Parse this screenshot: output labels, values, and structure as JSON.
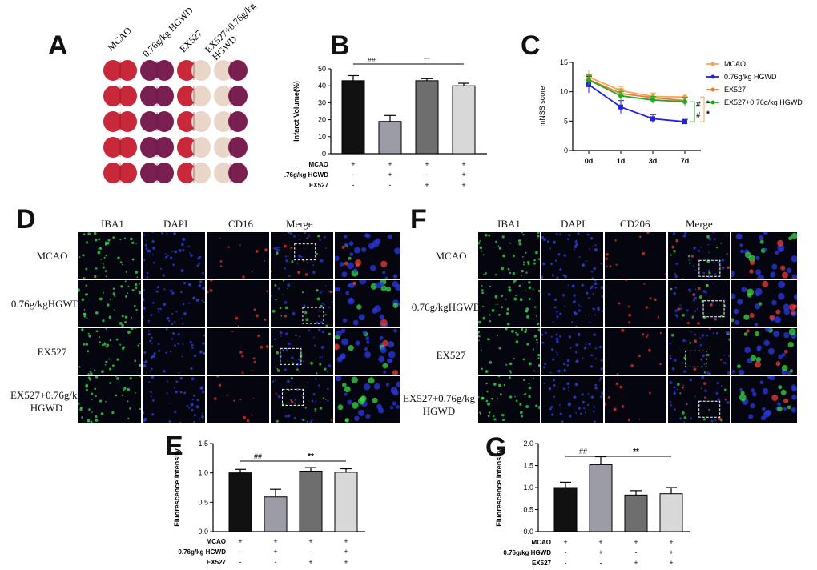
{
  "panels": {
    "A": "A",
    "B": "B",
    "C": "C",
    "D": "D",
    "E": "E",
    "F": "F",
    "G": "G"
  },
  "panel_a": {
    "columns": [
      "MCAO",
      "0.76g/kg HGWD",
      "EX527",
      "EX527+0.76g/kg\nHGWD"
    ],
    "tissue_colors": {
      "red": "#c8283a",
      "purple": "#7a1f52",
      "pale": "#ead6c8"
    }
  },
  "treatment_table": {
    "row_labels": [
      "MCAO",
      "0.76g/kg HGWD",
      "EX527"
    ],
    "rows": [
      [
        "+",
        "+",
        "+",
        "+"
      ],
      [
        "-",
        "+",
        "-",
        "+"
      ],
      [
        "-",
        "-",
        "+",
        "+"
      ]
    ]
  },
  "chart_data": [
    {
      "id": "B",
      "type": "bar",
      "title": "",
      "ylabel": "Infarct Volume(%)",
      "ylim": [
        0,
        50
      ],
      "yticks": [
        0,
        10,
        20,
        30,
        40,
        50
      ],
      "categories": [
        "MCAO",
        "0.76g/kg HGWD",
        "EX527",
        "EX527+0.76g/kg HGWD"
      ],
      "values": [
        43,
        19,
        43,
        40
      ],
      "errors": [
        3,
        3.5,
        1.2,
        1.5
      ],
      "colors": [
        "#111111",
        "#9c9ca6",
        "#6e6e6e",
        "#d8d8d8"
      ],
      "annotations": [
        "##",
        "**"
      ]
    },
    {
      "id": "C",
      "type": "line",
      "ylabel": "mNSS score",
      "x": [
        "0d",
        "1d",
        "3d",
        "7d"
      ],
      "ylim": [
        0,
        15
      ],
      "yticks": [
        0,
        5,
        10,
        15
      ],
      "series": [
        {
          "name": "MCAO",
          "values": [
            12.5,
            10.2,
            9.2,
            9.1
          ],
          "errors": [
            1.2,
            0.7,
            0.6,
            0.5
          ],
          "color": "#f5a55a"
        },
        {
          "name": "0.76g/kg HGWD",
          "values": [
            11.2,
            7.4,
            5.4,
            4.9
          ],
          "errors": [
            1.4,
            1.1,
            0.7,
            0.4
          ],
          "color": "#2222dd"
        },
        {
          "name": "EX527",
          "values": [
            12.1,
            9.7,
            9.0,
            8.5
          ],
          "errors": [
            0.8,
            0.8,
            0.6,
            0.6
          ],
          "color": "#f07a30"
        },
        {
          "name": "EX527+0.76g/kg HGWD",
          "values": [
            12.0,
            9.3,
            8.6,
            8.3
          ],
          "errors": [
            0.8,
            0.7,
            0.6,
            0.7
          ],
          "color": "#22aa22"
        }
      ],
      "annotations": [
        "#",
        "#",
        "*",
        "*"
      ]
    },
    {
      "id": "E",
      "type": "bar",
      "ylabel": "Fluorescence intensity",
      "ylim": [
        0,
        1.5
      ],
      "yticks": [
        "0.0",
        "0.5",
        "1.0",
        "1.5"
      ],
      "categories": [
        "MCAO",
        "0.76g/kg HGWD",
        "EX527",
        "EX527+0.76g/kg HGWD"
      ],
      "values": [
        1.0,
        0.59,
        1.03,
        1.01
      ],
      "errors": [
        0.06,
        0.13,
        0.06,
        0.06
      ],
      "colors": [
        "#111111",
        "#9c9ca6",
        "#6e6e6e",
        "#d8d8d8"
      ],
      "annotations": [
        "##",
        "**"
      ]
    },
    {
      "id": "G",
      "type": "bar",
      "ylabel": "Fluorescence intensity",
      "ylim": [
        0,
        2.0
      ],
      "yticks": [
        "0.0",
        "0.5",
        "1.0",
        "1.5",
        "2.0"
      ],
      "categories": [
        "MCAO",
        "0.76g/kg HGWD",
        "EX527",
        "EX527+0.76g/kg HGWD"
      ],
      "values": [
        1.0,
        1.52,
        0.83,
        0.86
      ],
      "errors": [
        0.12,
        0.18,
        0.1,
        0.14
      ],
      "colors": [
        "#111111",
        "#9c9ca6",
        "#6e6e6e",
        "#d8d8d8"
      ],
      "annotations": [
        "##",
        "**"
      ]
    }
  ],
  "panel_d": {
    "columns": [
      "IBA1",
      "DAPI",
      "CD16",
      "Merge"
    ],
    "rows": [
      "MCAO",
      "0.76g/kgHGWD",
      "EX527",
      "EX527+0.76g/kg\nHGWD"
    ]
  },
  "panel_f": {
    "columns": [
      "IBA1",
      "DAPI",
      "CD206",
      "Merge"
    ],
    "rows": [
      "MCAO",
      "0.76g/kgHGWD",
      "EX527",
      "EX527+0.76g/kg\nHGWD"
    ]
  }
}
